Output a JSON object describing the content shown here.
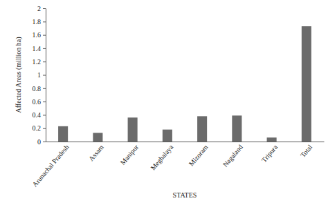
{
  "chart_data": {
    "type": "bar",
    "x_label": "STATES",
    "y_label": "Affected Areas (million ha)",
    "categories": [
      "Arunachal Pradesh",
      "Assam",
      "Manipur",
      "Meghalaya",
      "Mizoram",
      "Nagaland",
      "Tripura",
      "Total"
    ],
    "values": [
      0.23,
      0.13,
      0.36,
      0.18,
      0.38,
      0.39,
      0.06,
      1.73
    ],
    "color": "#6b6b6b",
    "ylim": [
      0,
      2
    ],
    "yticks": [
      0,
      0.2,
      0.4,
      0.6,
      0.8,
      1,
      1.2,
      1.4,
      1.6,
      1.8,
      2
    ],
    "grid": false
  }
}
